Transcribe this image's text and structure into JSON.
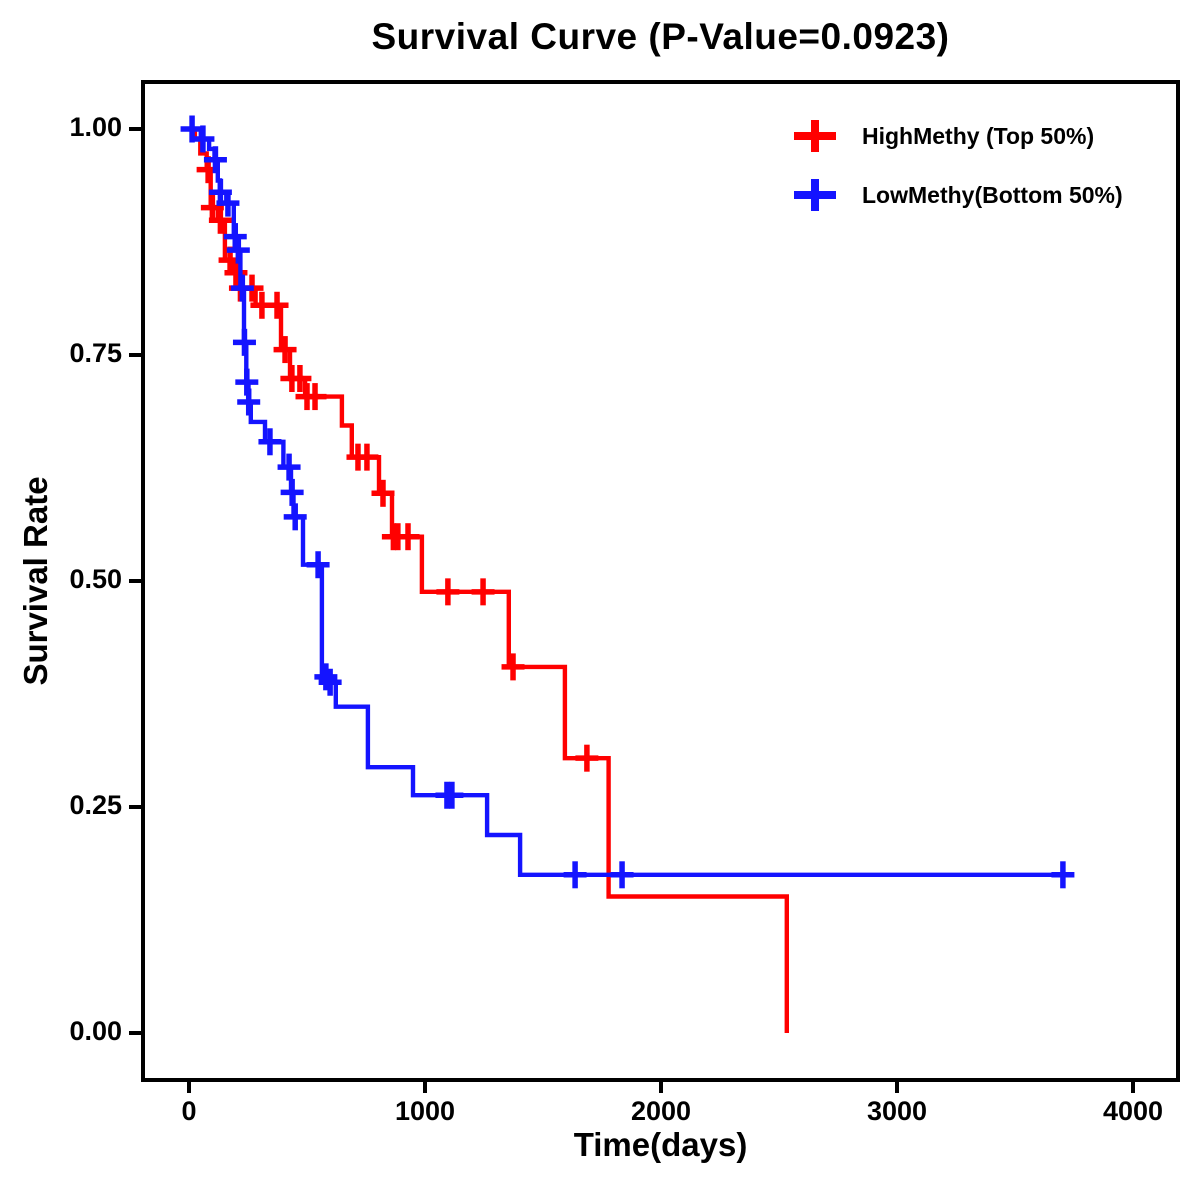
{
  "chart_data": {
    "type": "line",
    "subtype": "kaplan-meier-survival-step",
    "title": "Survival Curve (P-Value=0.0923)",
    "p_value": 0.0923,
    "xlabel": "Time(days)",
    "ylabel": "Survival Rate",
    "xlim": [
      0,
      4000
    ],
    "ylim": [
      0.0,
      1.0
    ],
    "x_ticks": [
      0,
      1000,
      2000,
      3000,
      4000
    ],
    "x_tick_labels": [
      "0",
      "1000",
      "2000",
      "3000",
      "4000"
    ],
    "y_ticks": [
      1.0,
      0.75,
      0.5,
      0.25,
      0.0
    ],
    "y_tick_labels": [
      "1.00",
      "0.75",
      "0.50",
      "0.25",
      "0.00"
    ],
    "grid": false,
    "legend_position": "top-right-inside",
    "frame": "full-box",
    "series": [
      {
        "name": "HighMethy (Top 50%)",
        "color": "#FF0000",
        "marker": "plus-censor",
        "steps_time_survival": [
          [
            0,
            1.0
          ],
          [
            25,
            0.989
          ],
          [
            48,
            0.973
          ],
          [
            75,
            0.955
          ],
          [
            92,
            0.913
          ],
          [
            122,
            0.899
          ],
          [
            152,
            0.855
          ],
          [
            192,
            0.841
          ],
          [
            212,
            0.824
          ],
          [
            282,
            0.805
          ],
          [
            390,
            0.756
          ],
          [
            428,
            0.724
          ],
          [
            492,
            0.704
          ],
          [
            648,
            0.672
          ],
          [
            690,
            0.637
          ],
          [
            805,
            0.597
          ],
          [
            860,
            0.549
          ],
          [
            987,
            0.488
          ],
          [
            1355,
            0.405
          ],
          [
            1593,
            0.304
          ],
          [
            1778,
            0.151
          ],
          [
            2533,
            0.0
          ]
        ],
        "censor_marks_time_survival": [
          [
            81,
            0.955
          ],
          [
            99,
            0.913
          ],
          [
            133,
            0.899
          ],
          [
            174,
            0.855
          ],
          [
            199,
            0.841
          ],
          [
            218,
            0.824
          ],
          [
            267,
            0.824
          ],
          [
            309,
            0.805
          ],
          [
            373,
            0.805
          ],
          [
            407,
            0.756
          ],
          [
            436,
            0.724
          ],
          [
            470,
            0.724
          ],
          [
            500,
            0.704
          ],
          [
            534,
            0.704
          ],
          [
            716,
            0.637
          ],
          [
            754,
            0.637
          ],
          [
            822,
            0.597
          ],
          [
            866,
            0.549
          ],
          [
            885,
            0.549
          ],
          [
            928,
            0.549
          ],
          [
            1097,
            0.488
          ],
          [
            1246,
            0.488
          ],
          [
            1373,
            0.405
          ],
          [
            1686,
            0.304
          ]
        ],
        "end_time": 2533,
        "ends_at_zero": true
      },
      {
        "name": "LowMethy(Bottom 50%)",
        "color": "#1414FF",
        "marker": "plus-censor",
        "steps_time_survival": [
          [
            0,
            1.0
          ],
          [
            50,
            0.989
          ],
          [
            85,
            0.978
          ],
          [
            108,
            0.966
          ],
          [
            122,
            0.943
          ],
          [
            131,
            0.93
          ],
          [
            158,
            0.918
          ],
          [
            190,
            0.881
          ],
          [
            205,
            0.866
          ],
          [
            218,
            0.824
          ],
          [
            233,
            0.764
          ],
          [
            243,
            0.72
          ],
          [
            252,
            0.698
          ],
          [
            262,
            0.676
          ],
          [
            322,
            0.654
          ],
          [
            400,
            0.626
          ],
          [
            432,
            0.598
          ],
          [
            443,
            0.571
          ],
          [
            483,
            0.518
          ],
          [
            563,
            0.394
          ],
          [
            592,
            0.388
          ],
          [
            622,
            0.361
          ],
          [
            758,
            0.294
          ],
          [
            949,
            0.263
          ],
          [
            1263,
            0.219
          ],
          [
            1403,
            0.175
          ]
        ],
        "censor_marks_time_survival": [
          [
            13,
            1.0
          ],
          [
            59,
            0.989
          ],
          [
            112,
            0.966
          ],
          [
            133,
            0.93
          ],
          [
            165,
            0.918
          ],
          [
            196,
            0.881
          ],
          [
            209,
            0.866
          ],
          [
            226,
            0.824
          ],
          [
            235,
            0.764
          ],
          [
            245,
            0.72
          ],
          [
            253,
            0.698
          ],
          [
            343,
            0.654
          ],
          [
            424,
            0.626
          ],
          [
            437,
            0.598
          ],
          [
            450,
            0.571
          ],
          [
            547,
            0.518
          ],
          [
            580,
            0.394
          ],
          [
            598,
            0.388
          ],
          [
            1093,
            0.263
          ],
          [
            1114,
            0.263
          ],
          [
            1636,
            0.175
          ],
          [
            1835,
            0.175
          ],
          [
            3703,
            0.175
          ]
        ],
        "end_time": 3703,
        "ends_at_zero": false
      }
    ]
  }
}
